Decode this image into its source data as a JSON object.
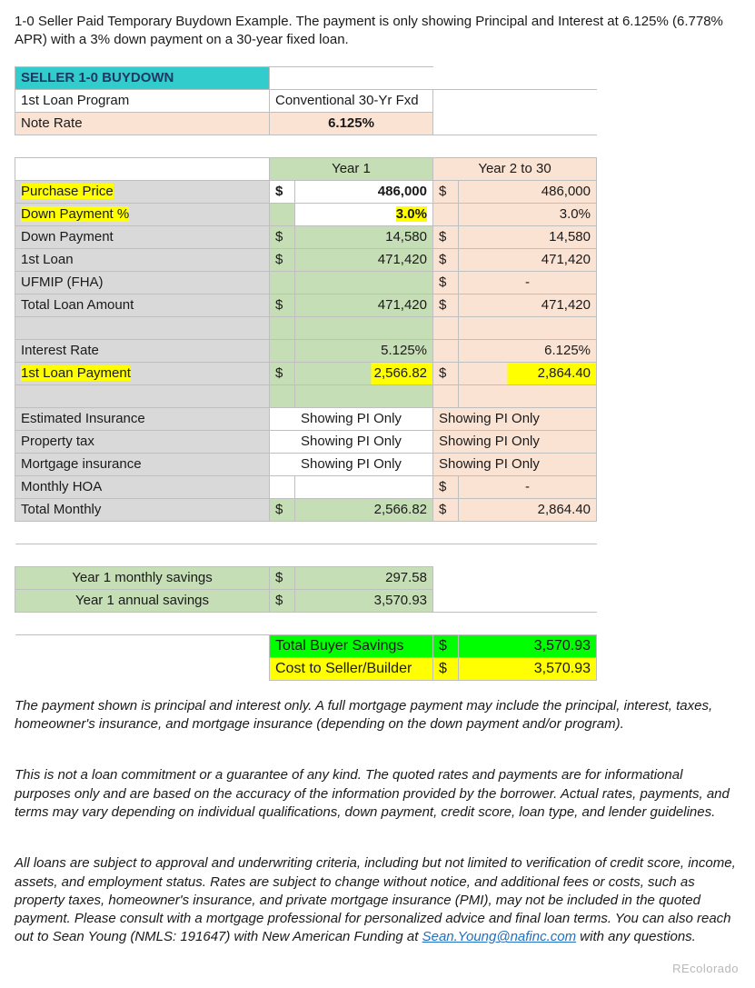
{
  "intro": "1-0 Seller Paid Temporary Buydown Example. The payment is only showing Principal and Interest at 6.125% (6.778% APR) with a 3% down payment on a 30-year fixed loan.",
  "title": "SELLER 1-0 BUYDOWN",
  "header": {
    "loanProgramLabel": "1st Loan Program",
    "loanProgramValue": "Conventional 30-Yr Fxd",
    "noteRateLabel": "Note Rate",
    "noteRateValue": "6.125%"
  },
  "columns": {
    "year1": "Year 1",
    "year2to30": "Year 2 to 30"
  },
  "rows": {
    "purchasePrice": {
      "label": "Purchase Price",
      "c1cur": "$",
      "c1": "486,000",
      "c2cur": "$",
      "c2": "486,000"
    },
    "downPaymentPct": {
      "label": "Down Payment %",
      "c1": "3.0%",
      "c2": "3.0%"
    },
    "downPayment": {
      "label": "Down Payment",
      "c1cur": "$",
      "c1": "14,580",
      "c2cur": "$",
      "c2": "14,580"
    },
    "firstLoan": {
      "label": "1st Loan",
      "c1cur": "$",
      "c1": "471,420",
      "c2cur": "$",
      "c2": "471,420"
    },
    "ufmip": {
      "label": "UFMIP (FHA)",
      "c1cur": "",
      "c1": "",
      "c2cur": "$",
      "c2": "-"
    },
    "totalLoan": {
      "label": "Total Loan Amount",
      "c1cur": "$",
      "c1": "471,420",
      "c2cur": "$",
      "c2": "471,420"
    },
    "interestRate": {
      "label": "Interest Rate",
      "c1": "5.125%",
      "c2": "6.125%"
    },
    "firstLoanPayment": {
      "label": "1st Loan Payment",
      "c1cur": "$",
      "c1": "2,566.82",
      "c2cur": "$",
      "c2": "2,864.40"
    },
    "estIns": {
      "label": "Estimated Insurance",
      "c1": "Showing PI Only",
      "c2": "Showing PI Only"
    },
    "propTax": {
      "label": "Property tax",
      "c1": "Showing PI Only",
      "c2": "Showing PI Only"
    },
    "mortIns": {
      "label": "Mortgage insurance",
      "c1": "Showing PI Only",
      "c2": "Showing PI Only"
    },
    "hoa": {
      "label": "Monthly HOA",
      "c1": "",
      "c2cur": "$",
      "c2": "-"
    },
    "totalMonthly": {
      "label": "Total Monthly",
      "c1cur": "$",
      "c1": "2,566.82",
      "c2cur": "$",
      "c2": "2,864.40"
    }
  },
  "savings": {
    "monthlyLabel": "Year 1 monthly savings",
    "monthlyCur": "$",
    "monthlyVal": "297.58",
    "annualLabel": "Year 1 annual savings",
    "annualCur": "$",
    "annualVal": "3,570.93"
  },
  "totals": {
    "buyerLabel": "Total Buyer Savings",
    "buyerCur": "$",
    "buyerVal": "3,570.93",
    "sellerLabel": "Cost to Seller/Builder",
    "sellerCur": "$",
    "sellerVal": "3,570.93"
  },
  "disclaimer": {
    "p1": "The payment shown is principal and interest only. A full mortgage payment may include the principal, interest, taxes, homeowner's insurance, and mortgage insurance (depending on the down payment and/or program).",
    "p2": "This is not a loan commitment or a guarantee of any kind. The quoted rates and payments are for informational purposes only and are based on the accuracy of the information provided by the borrower. Actual rates, payments, and terms may vary depending on individual qualifications, down payment, credit score, loan type, and lender guidelines.",
    "p3a": "All loans are subject to approval and underwriting criteria, including but not limited to verification of credit score, income, assets, and employment status. Rates are subject to change without notice, and additional fees or costs, such as property taxes, homeowner's insurance, and private mortgage insurance (PMI), may not be included in the quoted payment. Please consult with a mortgage professional for personalized advice and final loan terms. You can also reach out to Sean Young (NMLS: 191647) with New American Funding at ",
    "p3link": "Sean.Young@nafinc.com",
    "p3b": " with any questions."
  },
  "watermark": "REcolorado",
  "colors": {
    "title_bg": "#33cccc",
    "title_fg": "#1f3864",
    "peach": "#fbe3d4",
    "gray": "#d9d9d9",
    "green": "#c5deb5",
    "lime": "#00ff00",
    "yellow": "#ffff00",
    "border": "#bfbfbf"
  }
}
